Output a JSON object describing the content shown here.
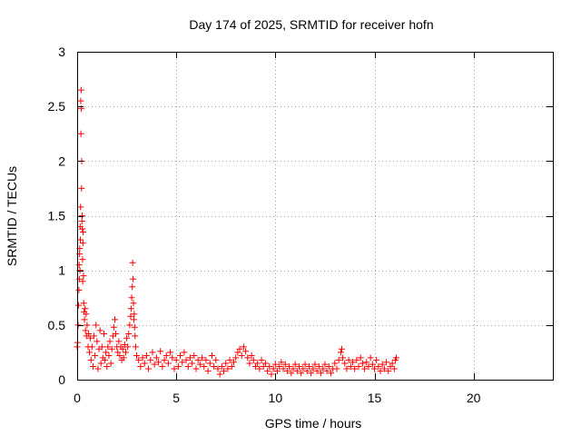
{
  "chart_data": {
    "type": "scatter",
    "title": "Day 174 of 2025, SRMTID for receiver hofn",
    "xlabel": "GPS time / hours",
    "ylabel": "SRMTID / TECUs",
    "xlim": [
      0,
      24
    ],
    "ylim": [
      0,
      3
    ],
    "xticks": [
      {
        "value": 0,
        "label": "0"
      },
      {
        "value": 5,
        "label": "5"
      },
      {
        "value": 10,
        "label": "10"
      },
      {
        "value": 15,
        "label": "15"
      },
      {
        "value": 20,
        "label": "20"
      }
    ],
    "yticks": [
      {
        "value": 0,
        "label": "0"
      },
      {
        "value": 0.5,
        "label": "0.5"
      },
      {
        "value": 1,
        "label": "1"
      },
      {
        "value": 1.5,
        "label": "1.5"
      },
      {
        "value": 2,
        "label": "2"
      },
      {
        "value": 2.5,
        "label": "2.5"
      },
      {
        "value": 3,
        "label": "3"
      }
    ],
    "grid": true,
    "marker": "+",
    "color": "#ff0000",
    "points": [
      [
        0.0,
        0.3
      ],
      [
        0.02,
        0.34
      ],
      [
        0.05,
        0.5
      ],
      [
        0.07,
        0.68
      ],
      [
        0.09,
        0.82
      ],
      [
        0.1,
        1.05
      ],
      [
        0.11,
        0.92
      ],
      [
        0.12,
        1.15
      ],
      [
        0.13,
        1.2
      ],
      [
        0.14,
        1.0
      ],
      [
        0.15,
        1.4
      ],
      [
        0.16,
        1.28
      ],
      [
        0.17,
        1.58
      ],
      [
        0.18,
        2.55
      ],
      [
        0.19,
        2.25
      ],
      [
        0.2,
        2.65
      ],
      [
        0.21,
        2.48
      ],
      [
        0.22,
        1.75
      ],
      [
        0.23,
        2.0
      ],
      [
        0.24,
        1.45
      ],
      [
        0.25,
        1.5
      ],
      [
        0.26,
        1.38
      ],
      [
        0.27,
        1.1
      ],
      [
        0.28,
        0.9
      ],
      [
        0.29,
        1.25
      ],
      [
        0.3,
        1.35
      ],
      [
        0.32,
        0.95
      ],
      [
        0.33,
        0.7
      ],
      [
        0.35,
        0.62
      ],
      [
        0.37,
        0.55
      ],
      [
        0.4,
        0.65
      ],
      [
        0.42,
        0.45
      ],
      [
        0.45,
        0.6
      ],
      [
        0.47,
        0.4
      ],
      [
        0.5,
        0.5
      ],
      [
        0.55,
        0.3
      ],
      [
        0.58,
        0.42
      ],
      [
        0.62,
        0.25
      ],
      [
        0.66,
        0.38
      ],
      [
        0.7,
        0.18
      ],
      [
        0.75,
        0.3
      ],
      [
        0.8,
        0.12
      ],
      [
        0.85,
        0.4
      ],
      [
        0.9,
        0.22
      ],
      [
        0.95,
        0.5
      ],
      [
        1.0,
        0.35
      ],
      [
        1.05,
        0.1
      ],
      [
        1.1,
        0.28
      ],
      [
        1.15,
        0.45
      ],
      [
        1.2,
        0.15
      ],
      [
        1.25,
        0.3
      ],
      [
        1.3,
        0.2
      ],
      [
        1.35,
        0.42
      ],
      [
        1.4,
        0.18
      ],
      [
        1.45,
        0.25
      ],
      [
        1.5,
        0.12
      ],
      [
        1.55,
        0.3
      ],
      [
        1.6,
        0.22
      ],
      [
        1.65,
        0.35
      ],
      [
        1.7,
        0.15
      ],
      [
        1.75,
        0.28
      ],
      [
        1.8,
        0.4
      ],
      [
        1.85,
        0.48
      ],
      [
        1.9,
        0.55
      ],
      [
        1.95,
        0.42
      ],
      [
        2.0,
        0.3
      ],
      [
        2.05,
        0.25
      ],
      [
        2.1,
        0.35
      ],
      [
        2.15,
        0.22
      ],
      [
        2.2,
        0.3
      ],
      [
        2.25,
        0.18
      ],
      [
        2.3,
        0.28
      ],
      [
        2.35,
        0.2
      ],
      [
        2.4,
        0.32
      ],
      [
        2.45,
        0.25
      ],
      [
        2.5,
        0.38
      ],
      [
        2.55,
        0.3
      ],
      [
        2.6,
        0.42
      ],
      [
        2.65,
        0.5
      ],
      [
        2.7,
        0.58
      ],
      [
        2.72,
        0.65
      ],
      [
        2.75,
        0.75
      ],
      [
        2.78,
        0.85
      ],
      [
        2.8,
        1.07
      ],
      [
        2.82,
        0.92
      ],
      [
        2.84,
        0.7
      ],
      [
        2.86,
        0.55
      ],
      [
        2.88,
        0.6
      ],
      [
        2.9,
        0.48
      ],
      [
        2.92,
        0.4
      ],
      [
        2.95,
        0.3
      ],
      [
        3.0,
        0.22
      ],
      [
        3.1,
        0.18
      ],
      [
        3.2,
        0.12
      ],
      [
        3.3,
        0.2
      ],
      [
        3.4,
        0.15
      ],
      [
        3.5,
        0.22
      ],
      [
        3.6,
        0.1
      ],
      [
        3.7,
        0.18
      ],
      [
        3.8,
        0.25
      ],
      [
        3.9,
        0.14
      ],
      [
        4.0,
        0.2
      ],
      [
        4.1,
        0.16
      ],
      [
        4.2,
        0.26
      ],
      [
        4.3,
        0.12
      ],
      [
        4.4,
        0.18
      ],
      [
        4.5,
        0.22
      ],
      [
        4.6,
        0.15
      ],
      [
        4.7,
        0.25
      ],
      [
        4.8,
        0.2
      ],
      [
        4.9,
        0.1
      ],
      [
        5.0,
        0.18
      ],
      [
        5.1,
        0.12
      ],
      [
        5.2,
        0.22
      ],
      [
        5.3,
        0.16
      ],
      [
        5.4,
        0.25
      ],
      [
        5.5,
        0.18
      ],
      [
        5.6,
        0.12
      ],
      [
        5.7,
        0.2
      ],
      [
        5.8,
        0.15
      ],
      [
        5.9,
        0.22
      ],
      [
        6.0,
        0.1
      ],
      [
        6.1,
        0.18
      ],
      [
        6.2,
        0.14
      ],
      [
        6.3,
        0.2
      ],
      [
        6.4,
        0.12
      ],
      [
        6.5,
        0.18
      ],
      [
        6.6,
        0.08
      ],
      [
        6.7,
        0.15
      ],
      [
        6.8,
        0.22
      ],
      [
        6.9,
        0.12
      ],
      [
        7.0,
        0.18
      ],
      [
        7.1,
        0.1
      ],
      [
        7.2,
        0.05
      ],
      [
        7.3,
        0.12
      ],
      [
        7.4,
        0.08
      ],
      [
        7.5,
        0.15
      ],
      [
        7.6,
        0.1
      ],
      [
        7.7,
        0.18
      ],
      [
        7.8,
        0.12
      ],
      [
        7.9,
        0.16
      ],
      [
        8.0,
        0.2
      ],
      [
        8.1,
        0.25
      ],
      [
        8.2,
        0.28
      ],
      [
        8.3,
        0.22
      ],
      [
        8.4,
        0.3
      ],
      [
        8.5,
        0.26
      ],
      [
        8.6,
        0.2
      ],
      [
        8.7,
        0.15
      ],
      [
        8.8,
        0.22
      ],
      [
        8.9,
        0.18
      ],
      [
        9.0,
        0.12
      ],
      [
        9.1,
        0.15
      ],
      [
        9.2,
        0.1
      ],
      [
        9.3,
        0.18
      ],
      [
        9.4,
        0.12
      ],
      [
        9.5,
        0.15
      ],
      [
        9.6,
        0.08
      ],
      [
        9.7,
        0.12
      ],
      [
        9.8,
        0.05
      ],
      [
        9.9,
        0.1
      ],
      [
        10.0,
        0.14
      ],
      [
        10.1,
        0.08
      ],
      [
        10.2,
        0.12
      ],
      [
        10.3,
        0.16
      ],
      [
        10.4,
        0.1
      ],
      [
        10.5,
        0.14
      ],
      [
        10.6,
        0.08
      ],
      [
        10.7,
        0.12
      ],
      [
        10.8,
        0.06
      ],
      [
        10.9,
        0.1
      ],
      [
        11.0,
        0.14
      ],
      [
        11.1,
        0.08
      ],
      [
        11.2,
        0.12
      ],
      [
        11.3,
        0.06
      ],
      [
        11.4,
        0.1
      ],
      [
        11.5,
        0.14
      ],
      [
        11.6,
        0.08
      ],
      [
        11.7,
        0.12
      ],
      [
        11.8,
        0.06
      ],
      [
        11.9,
        0.1
      ],
      [
        12.0,
        0.14
      ],
      [
        12.1,
        0.08
      ],
      [
        12.2,
        0.12
      ],
      [
        12.3,
        0.06
      ],
      [
        12.4,
        0.1
      ],
      [
        12.5,
        0.14
      ],
      [
        12.6,
        0.08
      ],
      [
        12.7,
        0.12
      ],
      [
        12.8,
        0.06
      ],
      [
        12.9,
        0.1
      ],
      [
        13.0,
        0.15
      ],
      [
        13.1,
        0.1
      ],
      [
        13.2,
        0.18
      ],
      [
        13.3,
        0.25
      ],
      [
        13.35,
        0.28
      ],
      [
        13.4,
        0.2
      ],
      [
        13.5,
        0.15
      ],
      [
        13.6,
        0.1
      ],
      [
        13.7,
        0.18
      ],
      [
        13.8,
        0.12
      ],
      [
        13.9,
        0.16
      ],
      [
        14.0,
        0.1
      ],
      [
        14.1,
        0.18
      ],
      [
        14.2,
        0.12
      ],
      [
        14.3,
        0.2
      ],
      [
        14.4,
        0.15
      ],
      [
        14.5,
        0.1
      ],
      [
        14.6,
        0.16
      ],
      [
        14.7,
        0.12
      ],
      [
        14.8,
        0.2
      ],
      [
        14.9,
        0.14
      ],
      [
        15.0,
        0.1
      ],
      [
        15.1,
        0.18
      ],
      [
        15.2,
        0.12
      ],
      [
        15.3,
        0.08
      ],
      [
        15.4,
        0.14
      ],
      [
        15.5,
        0.1
      ],
      [
        15.6,
        0.16
      ],
      [
        15.7,
        0.08
      ],
      [
        15.8,
        0.12
      ],
      [
        15.9,
        0.15
      ],
      [
        16.0,
        0.1
      ],
      [
        16.05,
        0.18
      ],
      [
        16.1,
        0.2
      ]
    ]
  }
}
